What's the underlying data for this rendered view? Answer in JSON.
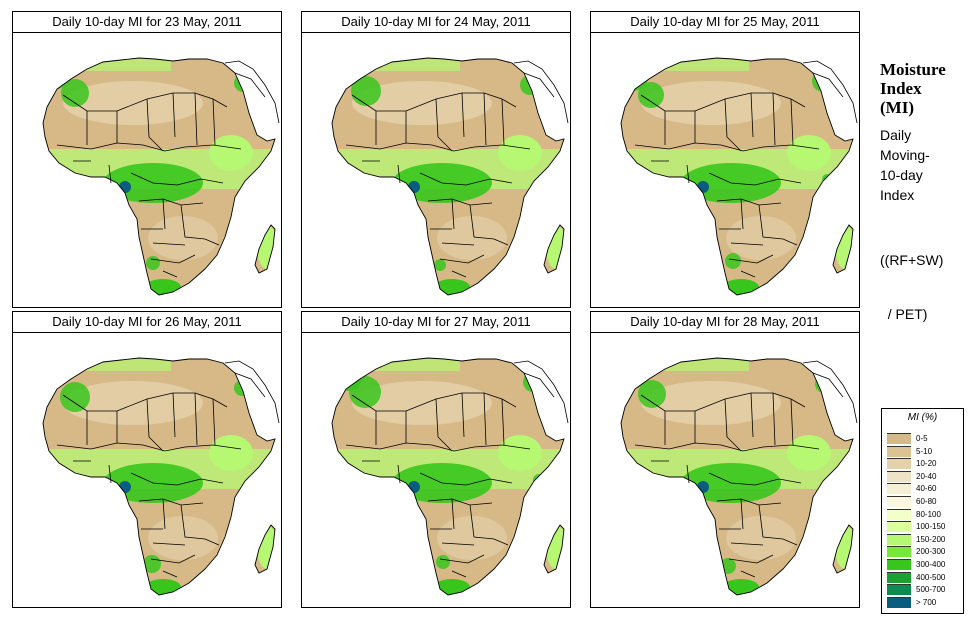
{
  "panels": [
    {
      "title": "Daily 10-day MI for  23 May, 2011",
      "wet": [
        [
          40,
          40,
          17
        ],
        [
          62,
          60,
          14
        ],
        [
          230,
          50,
          9
        ],
        [
          140,
          230,
          7
        ],
        [
          240,
          148,
          5
        ]
      ]
    },
    {
      "title": "Daily 10-day MI for  24 May, 2011",
      "wet": [
        [
          45,
          38,
          15
        ],
        [
          64,
          58,
          15
        ],
        [
          228,
          52,
          10
        ],
        [
          138,
          232,
          6
        ],
        [
          238,
          150,
          6
        ]
      ]
    },
    {
      "title": "Daily 10-day MI for  25 May, 2011",
      "wet": [
        [
          42,
          42,
          16
        ],
        [
          60,
          62,
          13
        ],
        [
          232,
          48,
          11
        ],
        [
          142,
          228,
          8
        ],
        [
          236,
          146,
          5
        ]
      ]
    },
    {
      "title": "Daily 10-day MI for  26 May, 2011",
      "wet": [
        [
          38,
          36,
          18
        ],
        [
          62,
          64,
          15
        ],
        [
          229,
          55,
          8
        ],
        [
          139,
          231,
          9
        ],
        [
          241,
          152,
          4
        ]
      ]
    },
    {
      "title": "Daily 10-day MI for  27 May, 2011",
      "wet": [
        [
          46,
          44,
          14
        ],
        [
          63,
          59,
          16
        ],
        [
          231,
          49,
          10
        ],
        [
          141,
          229,
          7
        ],
        [
          237,
          147,
          6
        ]
      ]
    },
    {
      "title": "Daily 10-day MI for  28 May, 2011",
      "wet": [
        [
          41,
          39,
          17
        ],
        [
          61,
          61,
          14
        ],
        [
          233,
          51,
          9
        ],
        [
          137,
          233,
          8
        ],
        [
          239,
          149,
          5
        ]
      ]
    }
  ],
  "sidebar": {
    "heading_lines": [
      "Moisture",
      "Index",
      "(MI)"
    ],
    "desc_lines": [
      "Daily",
      "Moving-",
      "10-day",
      "Index"
    ],
    "formula_lines": [
      "((RF+SW)",
      "  / PET)"
    ]
  },
  "legend": {
    "title": "MI (%)",
    "items": [
      {
        "label": "0-5",
        "color": "#d7b987"
      },
      {
        "label": "5-10",
        "color": "#dcc393"
      },
      {
        "label": "10-20",
        "color": "#e5d2ad"
      },
      {
        "label": "20-40",
        "color": "#efe2c6"
      },
      {
        "label": "40-60",
        "color": "#f5efd6"
      },
      {
        "label": "60-80",
        "color": "#fbf8e2"
      },
      {
        "label": "80-100",
        "color": "#f3ffc8"
      },
      {
        "label": "100-150",
        "color": "#dbff9f"
      },
      {
        "label": "150-200",
        "color": "#b6f871"
      },
      {
        "label": "200-300",
        "color": "#76e83a"
      },
      {
        "label": "300-400",
        "color": "#38c61c"
      },
      {
        "label": "400-500",
        "color": "#1aa22e"
      },
      {
        "label": "500-700",
        "color": "#0f8b52"
      },
      {
        "label": "> 700",
        "color": "#0b5d7f"
      }
    ]
  },
  "colors": {
    "desert": "#d7b987",
    "dry": "#e5d2ad",
    "moist": "#b6f871",
    "wet": "#38c61c",
    "verywet": "#0b5d7f",
    "border": "#000000",
    "ocean": "#ffffff"
  }
}
